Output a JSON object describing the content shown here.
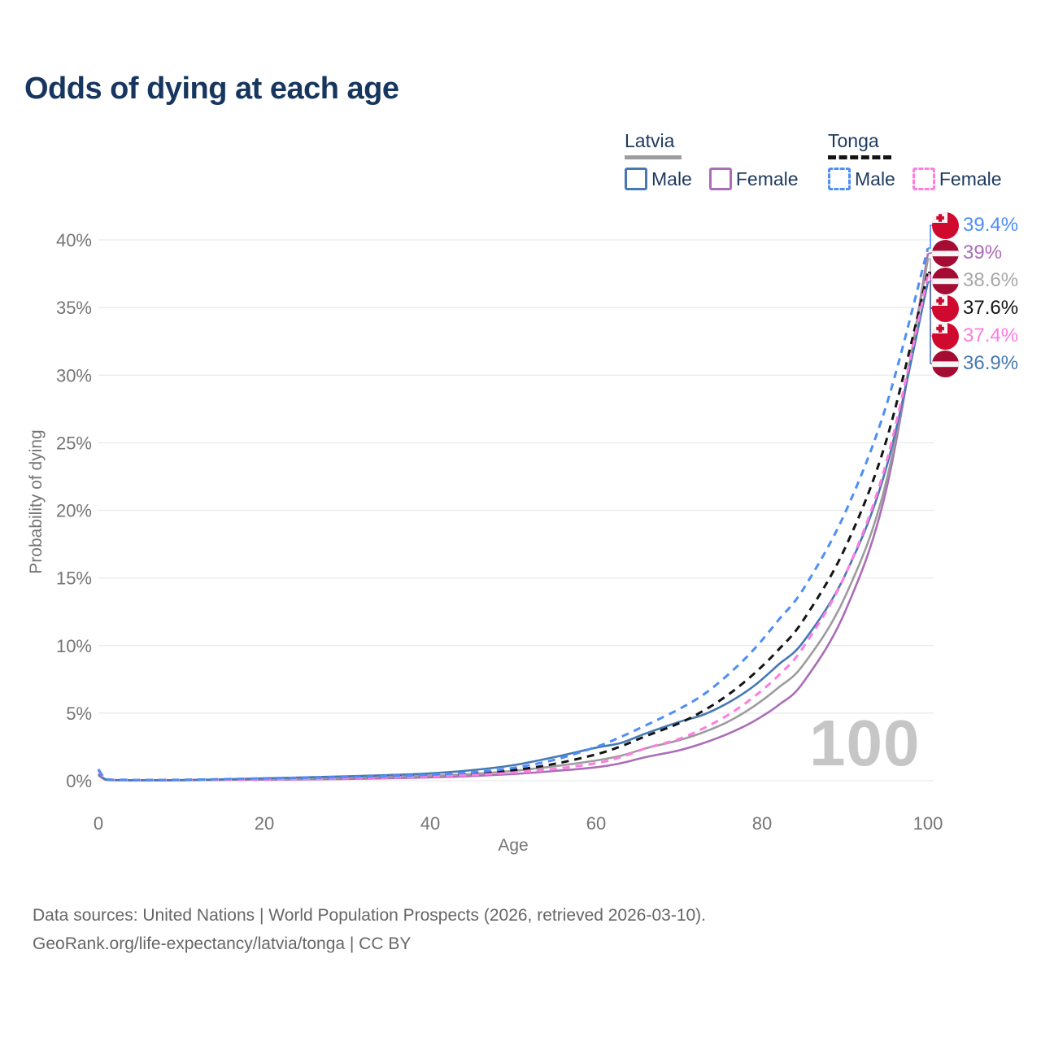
{
  "title": "Odds of dying at each age",
  "watermark": "100",
  "legend": {
    "groups": [
      {
        "name": "Latvia",
        "line_style": "solid",
        "line_color": "#9c9c9c",
        "items": [
          {
            "label": "Male",
            "color": "#4678b4",
            "dashed": false
          },
          {
            "label": "Female",
            "color": "#ab6db8",
            "dashed": false
          }
        ]
      },
      {
        "name": "Tonga",
        "line_style": "dashed",
        "line_color": "#141414",
        "items": [
          {
            "label": "Male",
            "color": "#4d8ef7",
            "dashed": true
          },
          {
            "label": "Female",
            "color": "#ff7ce0",
            "dashed": true
          }
        ]
      }
    ]
  },
  "chart_data": {
    "type": "line",
    "title": "Odds of dying at each age",
    "xlabel": "Age",
    "ylabel": "Probability of dying",
    "xlim": [
      0,
      100
    ],
    "ylim": [
      0,
      40
    ],
    "x_ticks": [
      0,
      20,
      40,
      60,
      80,
      100
    ],
    "y_ticks": [
      0,
      5,
      10,
      15,
      20,
      25,
      30,
      35,
      40
    ],
    "y_tick_suffix": "%",
    "grid": "horizontal",
    "legend_position": "top-right",
    "x": [
      0,
      1,
      3,
      5,
      10,
      15,
      20,
      25,
      30,
      35,
      40,
      45,
      50,
      55,
      60,
      63,
      66,
      70,
      73,
      76,
      79,
      82,
      85,
      90,
      95,
      100
    ],
    "series": [
      {
        "name": "Latvia female",
        "country": "Latvia",
        "sex": "Female",
        "color": "#ab6db8",
        "dashed": false,
        "end_value_label": "39%",
        "values": [
          0.4,
          0.06,
          0.035,
          0.03,
          0.035,
          0.06,
          0.08,
          0.1,
          0.13,
          0.18,
          0.25,
          0.35,
          0.5,
          0.72,
          1.0,
          1.3,
          1.75,
          2.25,
          2.8,
          3.5,
          4.4,
          5.6,
          7.3,
          12.5,
          21.6,
          39.0
        ]
      },
      {
        "name": "Latvia both sexes",
        "country": "Latvia",
        "sex": "Both",
        "color": "#9c9c9c",
        "dashed": false,
        "end_value_label": "38.6%",
        "values": [
          0.45,
          0.07,
          0.04,
          0.035,
          0.04,
          0.08,
          0.12,
          0.16,
          0.21,
          0.28,
          0.37,
          0.5,
          0.73,
          1.07,
          1.5,
          1.85,
          2.4,
          3.0,
          3.6,
          4.4,
          5.5,
          6.9,
          8.6,
          13.6,
          22.2,
          38.6
        ]
      },
      {
        "name": "Latvia male",
        "country": "Latvia",
        "sex": "Male",
        "color": "#4678b4",
        "dashed": false,
        "end_value_label": "36.9%",
        "values": [
          0.5,
          0.08,
          0.05,
          0.04,
          0.05,
          0.1,
          0.18,
          0.25,
          0.33,
          0.42,
          0.55,
          0.78,
          1.15,
          1.75,
          2.45,
          2.8,
          3.5,
          4.35,
          4.9,
          5.8,
          7.0,
          8.6,
          10.3,
          15.2,
          23.2,
          36.9
        ]
      },
      {
        "name": "Tonga both sexes",
        "country": "Tonga",
        "sex": "Both",
        "color": "#141414",
        "dashed": true,
        "end_value_label": "37.6%",
        "values": [
          0.8,
          0.11,
          0.06,
          0.055,
          0.06,
          0.1,
          0.15,
          0.18,
          0.23,
          0.3,
          0.38,
          0.52,
          0.78,
          1.25,
          1.95,
          2.55,
          3.3,
          4.25,
          5.2,
          6.4,
          7.9,
          9.7,
          11.9,
          17.2,
          25.2,
          37.6
        ]
      },
      {
        "name": "Tonga female",
        "country": "Tonga",
        "sex": "Female",
        "color": "#ff7ce0",
        "dashed": true,
        "end_value_label": "37.4%",
        "values": [
          0.75,
          0.1,
          0.05,
          0.05,
          0.05,
          0.08,
          0.11,
          0.14,
          0.18,
          0.24,
          0.32,
          0.43,
          0.6,
          0.88,
          1.3,
          1.75,
          2.4,
          3.1,
          3.9,
          4.9,
          6.2,
          7.8,
          9.9,
          15.2,
          23.6,
          37.4
        ]
      },
      {
        "name": "Tonga male",
        "country": "Tonga",
        "sex": "Male",
        "color": "#4d8ef7",
        "dashed": true,
        "end_value_label": "39.4%",
        "values": [
          0.85,
          0.12,
          0.07,
          0.06,
          0.07,
          0.12,
          0.18,
          0.22,
          0.28,
          0.35,
          0.45,
          0.62,
          0.95,
          1.55,
          2.5,
          3.25,
          4.1,
          5.3,
          6.4,
          7.9,
          9.7,
          11.9,
          14.2,
          19.8,
          27.8,
          39.4
        ]
      }
    ]
  },
  "end_labels": [
    {
      "flag": "tonga",
      "value": "39.4%",
      "color": "#4d8ef7",
      "series": "Tonga male",
      "end_value": 39.4
    },
    {
      "flag": "latvia",
      "value": "39%",
      "color": "#ab6db8",
      "series": "Latvia female",
      "end_value": 39.0
    },
    {
      "flag": "latvia",
      "value": "38.6%",
      "color": "#a8a8a8",
      "series": "Latvia both sexes",
      "end_value": 38.6
    },
    {
      "flag": "tonga",
      "value": "37.6%",
      "color": "#141414",
      "series": "Tonga both sexes",
      "end_value": 37.6
    },
    {
      "flag": "tonga",
      "value": "37.4%",
      "color": "#ff7ce0",
      "series": "Tonga female",
      "end_value": 37.4
    },
    {
      "flag": "latvia",
      "value": "36.9%",
      "color": "#4678b4",
      "series": "Latvia male",
      "end_value": 36.9
    }
  ],
  "flag_colors": {
    "tonga_red": "#d0092f",
    "latvia_red": "#a50c33",
    "white": "#f6f6f6"
  },
  "footer": {
    "line1": "Data sources: United Nations | World Population Prospects (2026, retrieved 2026-03-10).",
    "line2": "GeoRank.org/life-expectancy/latvia/tonga | CC BY"
  }
}
